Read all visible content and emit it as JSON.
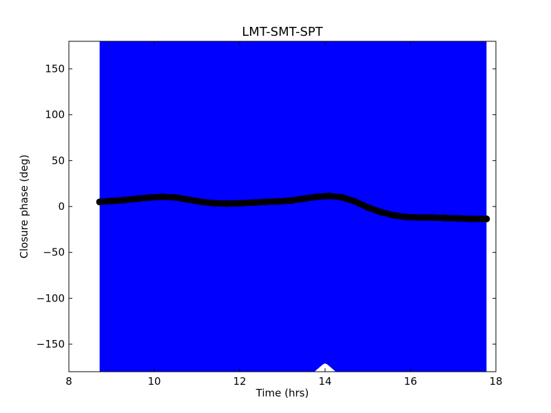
{
  "chart_data": {
    "type": "scatter",
    "title": "LMT-SMT-SPT",
    "xlabel": "Time (hrs)",
    "ylabel": "Closure phase (deg)",
    "xlim": [
      8,
      18
    ],
    "ylim": [
      -180,
      180
    ],
    "x_ticks": [
      8,
      10,
      12,
      14,
      16,
      18
    ],
    "y_ticks": [
      -150,
      -100,
      -50,
      0,
      50,
      100,
      150
    ],
    "x_tick_labels": [
      "8",
      "10",
      "12",
      "14",
      "16",
      "18"
    ],
    "y_tick_labels": [
      "−150",
      "−100",
      "−50",
      "0",
      "50",
      "100",
      "150"
    ],
    "grid": false,
    "band": {
      "color": "#0000ff",
      "x_start": 8.72,
      "x_end": 17.78,
      "lower": -180,
      "upper": 180,
      "notch": [
        [
          13.75,
          -180
        ],
        [
          13.85,
          -176
        ],
        [
          13.95,
          -172
        ],
        [
          14.0,
          -171
        ],
        [
          14.05,
          -172
        ],
        [
          14.15,
          -176
        ],
        [
          14.25,
          -180
        ]
      ]
    },
    "series": [
      {
        "marker_color": "#000000",
        "points": [
          [
            8.72,
            5
          ],
          [
            9.0,
            6
          ],
          [
            9.3,
            7
          ],
          [
            9.6,
            8.5
          ],
          [
            9.9,
            9.8
          ],
          [
            10.2,
            10.5
          ],
          [
            10.5,
            9.8
          ],
          [
            10.8,
            7.5
          ],
          [
            11.1,
            5
          ],
          [
            11.4,
            3.5
          ],
          [
            11.7,
            3.2
          ],
          [
            12.0,
            3.5
          ],
          [
            12.3,
            4.2
          ],
          [
            12.6,
            5
          ],
          [
            12.9,
            5.5
          ],
          [
            13.2,
            6.5
          ],
          [
            13.5,
            8.5
          ],
          [
            13.8,
            10.5
          ],
          [
            14.1,
            11.5
          ],
          [
            14.4,
            10
          ],
          [
            14.7,
            5.5
          ],
          [
            15.0,
            -1
          ],
          [
            15.3,
            -6
          ],
          [
            15.6,
            -9.5
          ],
          [
            15.9,
            -11.5
          ],
          [
            16.2,
            -12
          ],
          [
            16.5,
            -12
          ],
          [
            16.8,
            -12.5
          ],
          [
            17.1,
            -13
          ],
          [
            17.4,
            -13.5
          ],
          [
            17.78,
            -13.5
          ]
        ]
      }
    ]
  }
}
